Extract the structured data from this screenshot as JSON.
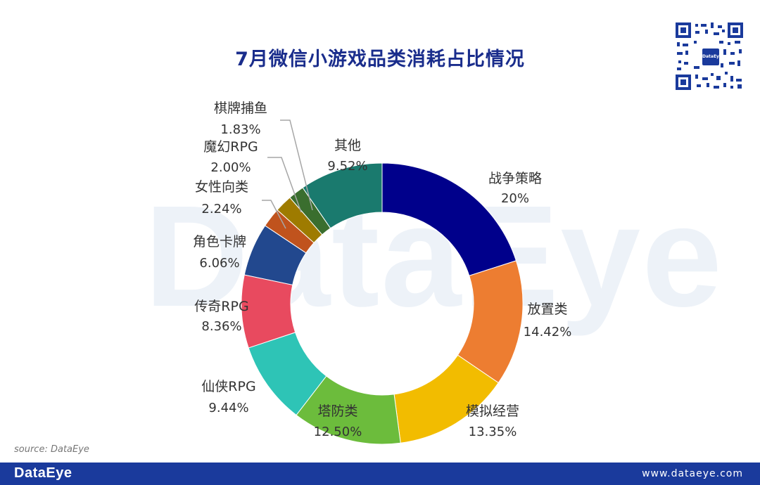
{
  "header": {
    "title": "7月微信小游戏品类消耗占比情况"
  },
  "watermark": {
    "text": "DataEye"
  },
  "qr": {
    "center_label": "DataEye"
  },
  "chart_data": {
    "type": "pie",
    "style": "donut",
    "title": "7月微信小游戏品类消耗占比情况",
    "slices": [
      {
        "name": "战争策略",
        "value": 20,
        "label": "20%",
        "color": "#00008b"
      },
      {
        "name": "放置类",
        "value": 14.42,
        "label": "14.42%",
        "color": "#ed7d31"
      },
      {
        "name": "模拟经营",
        "value": 13.35,
        "label": "13.35%",
        "color": "#f2bc00"
      },
      {
        "name": "塔防类",
        "value": 12.5,
        "label": "12.50%",
        "color": "#6cbc3c"
      },
      {
        "name": "仙侠RPG",
        "value": 9.44,
        "label": "9.44%",
        "color": "#2ec4b6"
      },
      {
        "name": "传奇RPG",
        "value": 8.36,
        "label": "8.36%",
        "color": "#e84a5f"
      },
      {
        "name": "角色卡牌",
        "value": 6.06,
        "label": "6.06%",
        "color": "#22488e"
      },
      {
        "name": "女性向类",
        "value": 2.24,
        "label": "2.24%",
        "color": "#c0531d"
      },
      {
        "name": "魔幻RPG",
        "value": 2.0,
        "label": "2.00%",
        "color": "#9e7b00"
      },
      {
        "name": "棋牌捕鱼",
        "value": 1.83,
        "label": "1.83%",
        "color": "#3a6e2e"
      },
      {
        "name": "其他",
        "value": 9.52,
        "label": "9.52%",
        "color": "#1a7a6e"
      }
    ]
  },
  "footer": {
    "source": "source: DataEye",
    "logo": "DataEye",
    "url": "www.dataeye.com"
  }
}
